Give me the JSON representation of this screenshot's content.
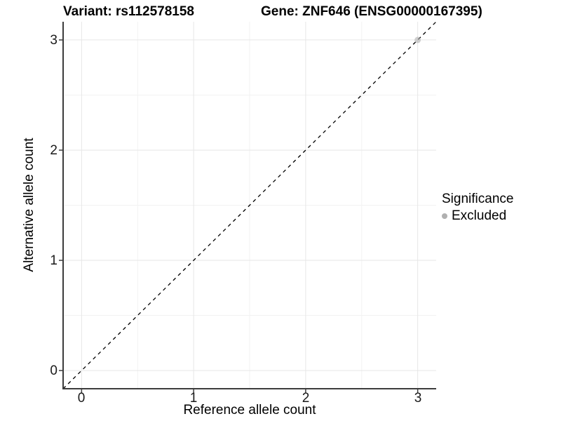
{
  "header": {
    "variant_title": "Variant: rs112578158",
    "gene_title": "Gene: ZNF646 (ENSG00000167395)"
  },
  "chart_data": {
    "type": "scatter",
    "title": "Variant: rs112578158  Gene: ZNF646 (ENSG00000167395)",
    "xlabel": "Reference allele count",
    "ylabel": "Alternative allele count",
    "xlim": [
      -0.165,
      3.165
    ],
    "ylim": [
      -0.165,
      3.165
    ],
    "x_ticks": [
      0,
      1,
      2,
      3
    ],
    "y_ticks": [
      0,
      1,
      2,
      3
    ],
    "x_minor_ticks": [
      0.5,
      1.5,
      2.5
    ],
    "y_minor_ticks": [
      0.5,
      1.5,
      2.5
    ],
    "grid": "major-and-minor, light gray on white",
    "series": [
      {
        "name": "Excluded",
        "color": "#b0b0b0",
        "opacity": 0.6,
        "points": [
          {
            "x": 3,
            "y": 3
          }
        ]
      }
    ],
    "reference_line": {
      "kind": "identity y=x",
      "style": "dashed",
      "color": "#000000"
    },
    "legend": {
      "position": "right",
      "title": "Significance",
      "items": [
        {
          "label": "Excluded",
          "color": "#b0b0b0"
        }
      ]
    }
  },
  "colors": {
    "background": "#ffffff",
    "grid_major": "#e6e6e6",
    "grid_minor": "#f2f2f2",
    "axis_line": "#3c3c3c",
    "point_gray": "#b0b0b0",
    "dashed_line": "#000000"
  }
}
